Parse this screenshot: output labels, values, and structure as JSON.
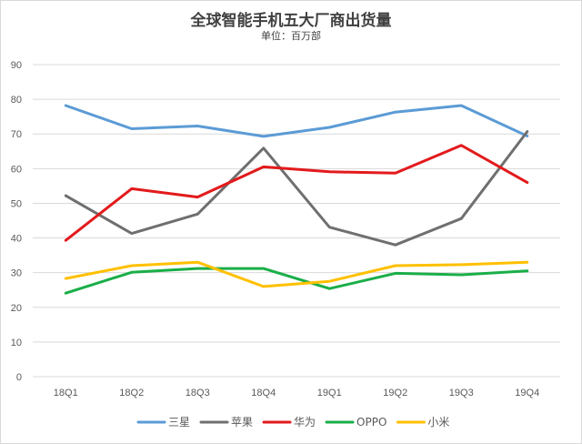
{
  "chart_data": {
    "type": "line",
    "title": "全球智能手机五大厂商出货量",
    "subtitle": "单位：百万部",
    "categories": [
      "18Q1",
      "18Q2",
      "18Q3",
      "18Q4",
      "19Q1",
      "19Q2",
      "19Q3",
      "19Q4"
    ],
    "ylim": [
      0,
      90
    ],
    "yticks": [
      0,
      10,
      20,
      30,
      40,
      50,
      60,
      70,
      80,
      90
    ],
    "grid": true,
    "legend_position": "bottom",
    "series": [
      {
        "name": "三星",
        "color": "#5b9bd5",
        "values": [
          78.2,
          71.5,
          72.3,
          69.3,
          71.9,
          76.3,
          78.2,
          69.4
        ]
      },
      {
        "name": "苹果",
        "color": "#6f6f6f",
        "values": [
          52.2,
          41.3,
          46.9,
          65.9,
          43.1,
          38.0,
          45.6,
          70.7
        ]
      },
      {
        "name": "华为",
        "color": "#e31a1c",
        "values": [
          39.3,
          54.2,
          51.8,
          60.5,
          59.1,
          58.7,
          66.7,
          56.0
        ]
      },
      {
        "name": "OPPO",
        "color": "#1aae48",
        "values": [
          24.1,
          30.1,
          31.2,
          31.2,
          25.4,
          29.8,
          29.4,
          30.5
        ]
      },
      {
        "name": "小米",
        "color": "#ffc000",
        "values": [
          28.3,
          32.0,
          33.0,
          26.0,
          27.5,
          32.0,
          32.3,
          33.0
        ]
      }
    ]
  }
}
